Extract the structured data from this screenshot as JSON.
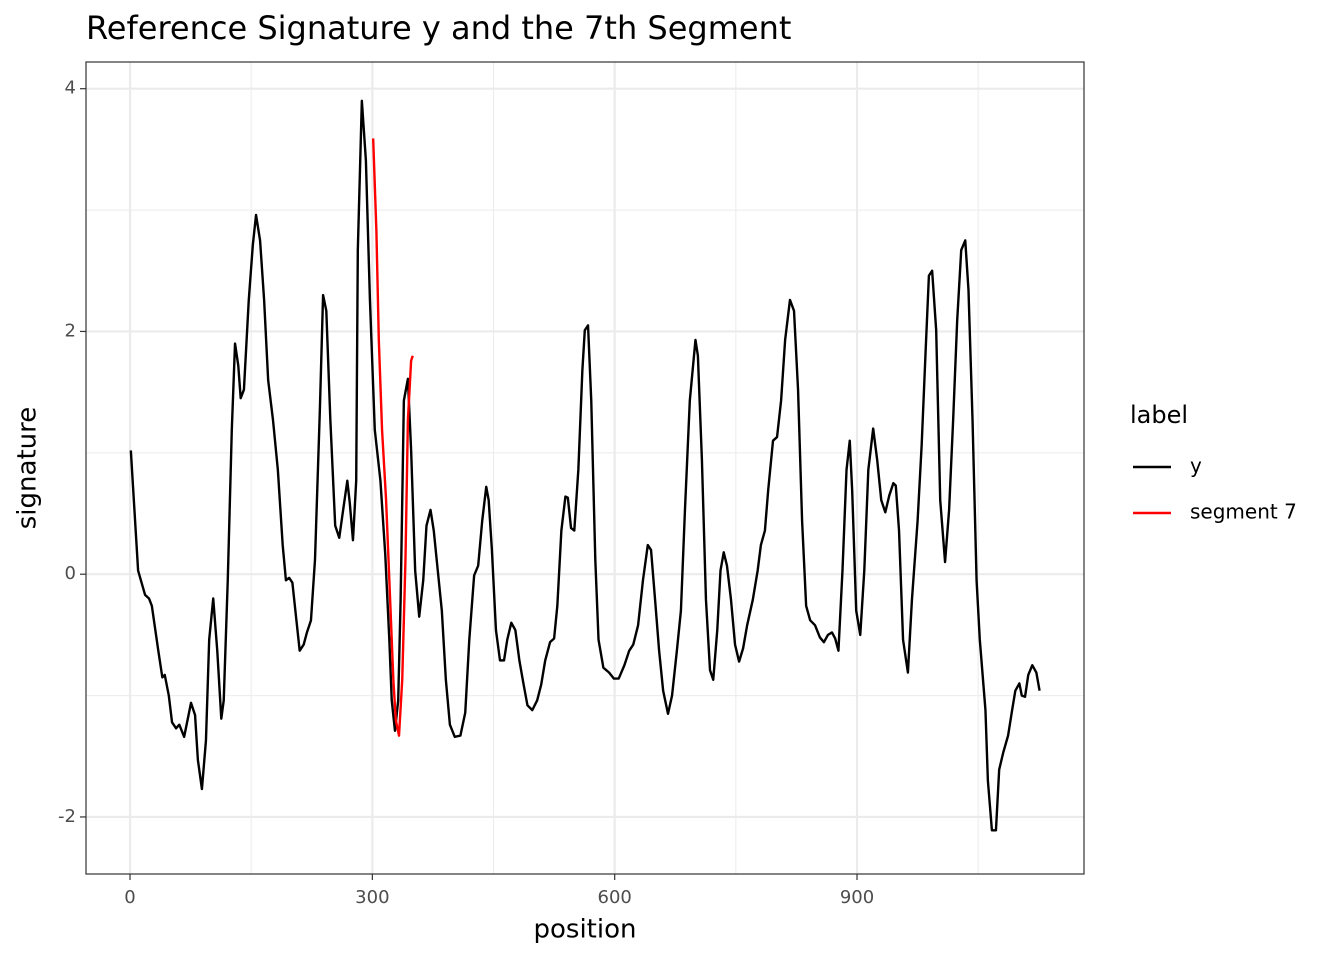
{
  "chart_data": {
    "type": "line",
    "title": "Reference Signature y and the 7th Segment",
    "x_label": "position",
    "y_label": "signature",
    "legend_title": "label",
    "legend_position": "right",
    "xlim": [
      -54.5,
      1181
    ],
    "ylim": [
      -2.47,
      4.22
    ],
    "xticks": [
      0,
      300,
      600,
      900
    ],
    "yticks": [
      -2,
      0,
      2,
      4
    ],
    "minor_xgrid": [
      150,
      450,
      750,
      1050
    ],
    "minor_ygrid": [
      -1,
      1,
      3
    ],
    "grid": true,
    "series": [
      {
        "name": "y",
        "color": "#000000",
        "x": [
          1,
          10,
          18.6,
          23.5,
          27,
          35,
          40,
          43,
          48,
          52,
          57,
          61,
          67,
          75.5,
          80.5,
          84,
          89,
          94,
          98,
          103,
          108,
          113,
          116,
          121,
          126,
          130,
          134,
          137,
          141,
          147,
          152,
          156,
          161,
          166,
          171,
          177,
          183,
          189,
          193,
          197,
          201,
          206,
          210,
          215,
          219,
          224,
          229,
          235,
          239,
          243,
          248,
          254,
          259,
          263,
          269,
          272,
          276,
          280,
          282,
          287,
          292,
          297,
          303,
          310,
          316,
          321,
          324,
          328,
          332,
          335,
          339,
          344,
          348,
          353,
          358,
          363,
          367,
          372,
          376,
          381,
          386,
          391,
          396,
          402,
          409,
          415,
          420,
          426,
          431,
          436,
          441,
          444,
          448,
          453,
          458,
          463,
          467,
          472,
          477,
          482,
          487,
          492,
          498,
          504,
          509,
          514,
          520,
          525,
          529,
          534,
          539,
          542,
          546,
          550,
          555,
          560,
          563,
          567,
          571,
          576,
          580,
          586,
          593,
          599,
          605,
          612,
          618,
          623,
          629,
          635,
          641,
          645,
          650,
          655,
          660,
          666,
          671,
          677,
          682,
          687,
          693,
          700,
          703,
          708,
          713,
          718,
          722,
          727,
          731,
          735,
          739,
          744,
          749,
          754,
          759,
          764,
          771,
          777,
          781,
          786,
          790,
          796,
          801,
          806,
          811,
          817,
          822,
          827,
          832,
          837,
          842,
          848,
          854,
          859,
          864,
          869,
          873,
          877,
          882,
          887,
          891,
          894,
          899,
          904,
          909,
          914,
          920,
          925,
          930,
          935,
          940,
          945,
          948,
          952,
          957,
          963,
          968,
          975,
          980,
          985,
          989,
          993,
          998,
          1003,
          1009,
          1014,
          1019,
          1024,
          1029,
          1034,
          1038,
          1043,
          1048,
          1052,
          1059,
          1062,
          1067,
          1072,
          1076,
          1081,
          1087,
          1092,
          1096,
          1101,
          1104,
          1108,
          1112,
          1117,
          1122,
          1126
        ],
        "values": [
          1.02,
          0.03,
          -0.17,
          -0.2,
          -0.26,
          -0.63,
          -0.85,
          -0.83,
          -1.0,
          -1.22,
          -1.27,
          -1.24,
          -1.34,
          -1.06,
          -1.16,
          -1.53,
          -1.77,
          -1.37,
          -0.54,
          -0.2,
          -0.63,
          -1.19,
          -1.04,
          -0.05,
          1.19,
          1.9,
          1.72,
          1.45,
          1.52,
          2.26,
          2.71,
          2.96,
          2.75,
          2.26,
          1.6,
          1.27,
          0.86,
          0.24,
          -0.05,
          -0.03,
          -0.07,
          -0.38,
          -0.63,
          -0.58,
          -0.48,
          -0.38,
          0.12,
          1.35,
          2.3,
          2.17,
          1.27,
          0.4,
          0.3,
          0.49,
          0.77,
          0.59,
          0.28,
          0.77,
          2.67,
          3.9,
          3.41,
          2.26,
          1.19,
          0.77,
          0.16,
          -0.54,
          -1.04,
          -1.29,
          -1.04,
          -0.21,
          1.43,
          1.61,
          1.02,
          0.03,
          -0.35,
          -0.05,
          0.4,
          0.53,
          0.36,
          0.03,
          -0.3,
          -0.87,
          -1.24,
          -1.34,
          -1.33,
          -1.14,
          -0.54,
          -0.01,
          0.07,
          0.44,
          0.72,
          0.61,
          0.2,
          -0.46,
          -0.71,
          -0.71,
          -0.54,
          -0.4,
          -0.46,
          -0.71,
          -0.9,
          -1.08,
          -1.12,
          -1.04,
          -0.91,
          -0.71,
          -0.56,
          -0.53,
          -0.26,
          0.36,
          0.64,
          0.63,
          0.38,
          0.36,
          0.86,
          1.68,
          2.01,
          2.05,
          1.43,
          0.12,
          -0.54,
          -0.77,
          -0.81,
          -0.86,
          -0.86,
          -0.75,
          -0.63,
          -0.58,
          -0.42,
          -0.05,
          0.24,
          0.2,
          -0.21,
          -0.63,
          -0.96,
          -1.15,
          -1.0,
          -0.63,
          -0.3,
          0.53,
          1.43,
          1.93,
          1.8,
          0.94,
          -0.21,
          -0.79,
          -0.87,
          -0.46,
          0.03,
          0.18,
          0.07,
          -0.21,
          -0.58,
          -0.72,
          -0.61,
          -0.42,
          -0.21,
          0.03,
          0.24,
          0.36,
          0.69,
          1.1,
          1.13,
          1.43,
          1.93,
          2.26,
          2.17,
          1.52,
          0.44,
          -0.26,
          -0.38,
          -0.42,
          -0.52,
          -0.56,
          -0.5,
          -0.48,
          -0.53,
          -0.63,
          0.03,
          0.86,
          1.1,
          0.69,
          -0.3,
          -0.5,
          0.03,
          0.86,
          1.2,
          0.94,
          0.61,
          0.51,
          0.65,
          0.75,
          0.73,
          0.36,
          -0.54,
          -0.81,
          -0.21,
          0.44,
          1.06,
          1.85,
          2.46,
          2.5,
          2.01,
          0.61,
          0.1,
          0.53,
          1.27,
          2.09,
          2.67,
          2.75,
          2.34,
          1.27,
          -0.05,
          -0.54,
          -1.12,
          -1.7,
          -2.11,
          -2.11,
          -1.61,
          -1.47,
          -1.33,
          -1.12,
          -0.96,
          -0.9,
          -1.0,
          -1.01,
          -0.83,
          -0.75,
          -0.81,
          -0.96
        ]
      },
      {
        "name": "segment 7",
        "color": "#ff0000",
        "x": [
          301,
          305,
          308,
          312,
          317,
          322,
          326,
          329,
          333,
          337,
          341,
          344,
          348,
          350
        ],
        "values": [
          3.59,
          2.83,
          1.93,
          1.19,
          0.61,
          -0.21,
          -0.87,
          -1.2,
          -1.33,
          -0.87,
          0.12,
          1.27,
          1.76,
          1.8
        ]
      }
    ]
  }
}
